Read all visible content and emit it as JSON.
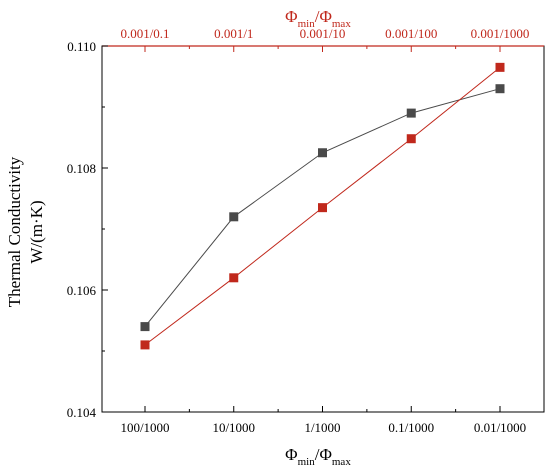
{
  "colors": {
    "bottom_series": "#4a4a4a",
    "top_series": "#c0281c",
    "top_axis": "#c0281c",
    "axis": "#000000"
  },
  "chart_data": {
    "type": "line",
    "top_axis_label_main": "Φ",
    "top_axis_label_sub1": "min",
    "top_axis_label_mid": "/Φ",
    "top_axis_label_sub2": "max",
    "top_tick_labels": [
      "0.001/0.1",
      "0.001/1",
      "0.001/10",
      "0.001/100",
      "0.001/1000"
    ],
    "bottom_axis_label_main": "Φ",
    "bottom_axis_label_sub1": "min",
    "bottom_axis_label_mid": "/Φ",
    "bottom_axis_label_sub2": "max",
    "bottom_tick_labels": [
      "100/1000",
      "10/1000",
      "1/1000",
      "0.1/1000",
      "0.01/1000"
    ],
    "ylabel_line1": "Thermal Conductivity",
    "ylabel_line2": "W/(m·K)",
    "ylim": [
      0.104,
      0.11
    ],
    "y_ticks": [
      0.104,
      0.106,
      0.108,
      0.11
    ],
    "y_tick_labels": [
      "0.104",
      "0.106",
      "0.108",
      "0.110"
    ],
    "series": [
      {
        "axis": "bottom",
        "values": [
          0.1054,
          0.1072,
          0.10825,
          0.1089,
          0.1093
        ]
      },
      {
        "axis": "top",
        "values": [
          0.1051,
          0.1062,
          0.10735,
          0.10848,
          0.10965
        ]
      }
    ]
  }
}
